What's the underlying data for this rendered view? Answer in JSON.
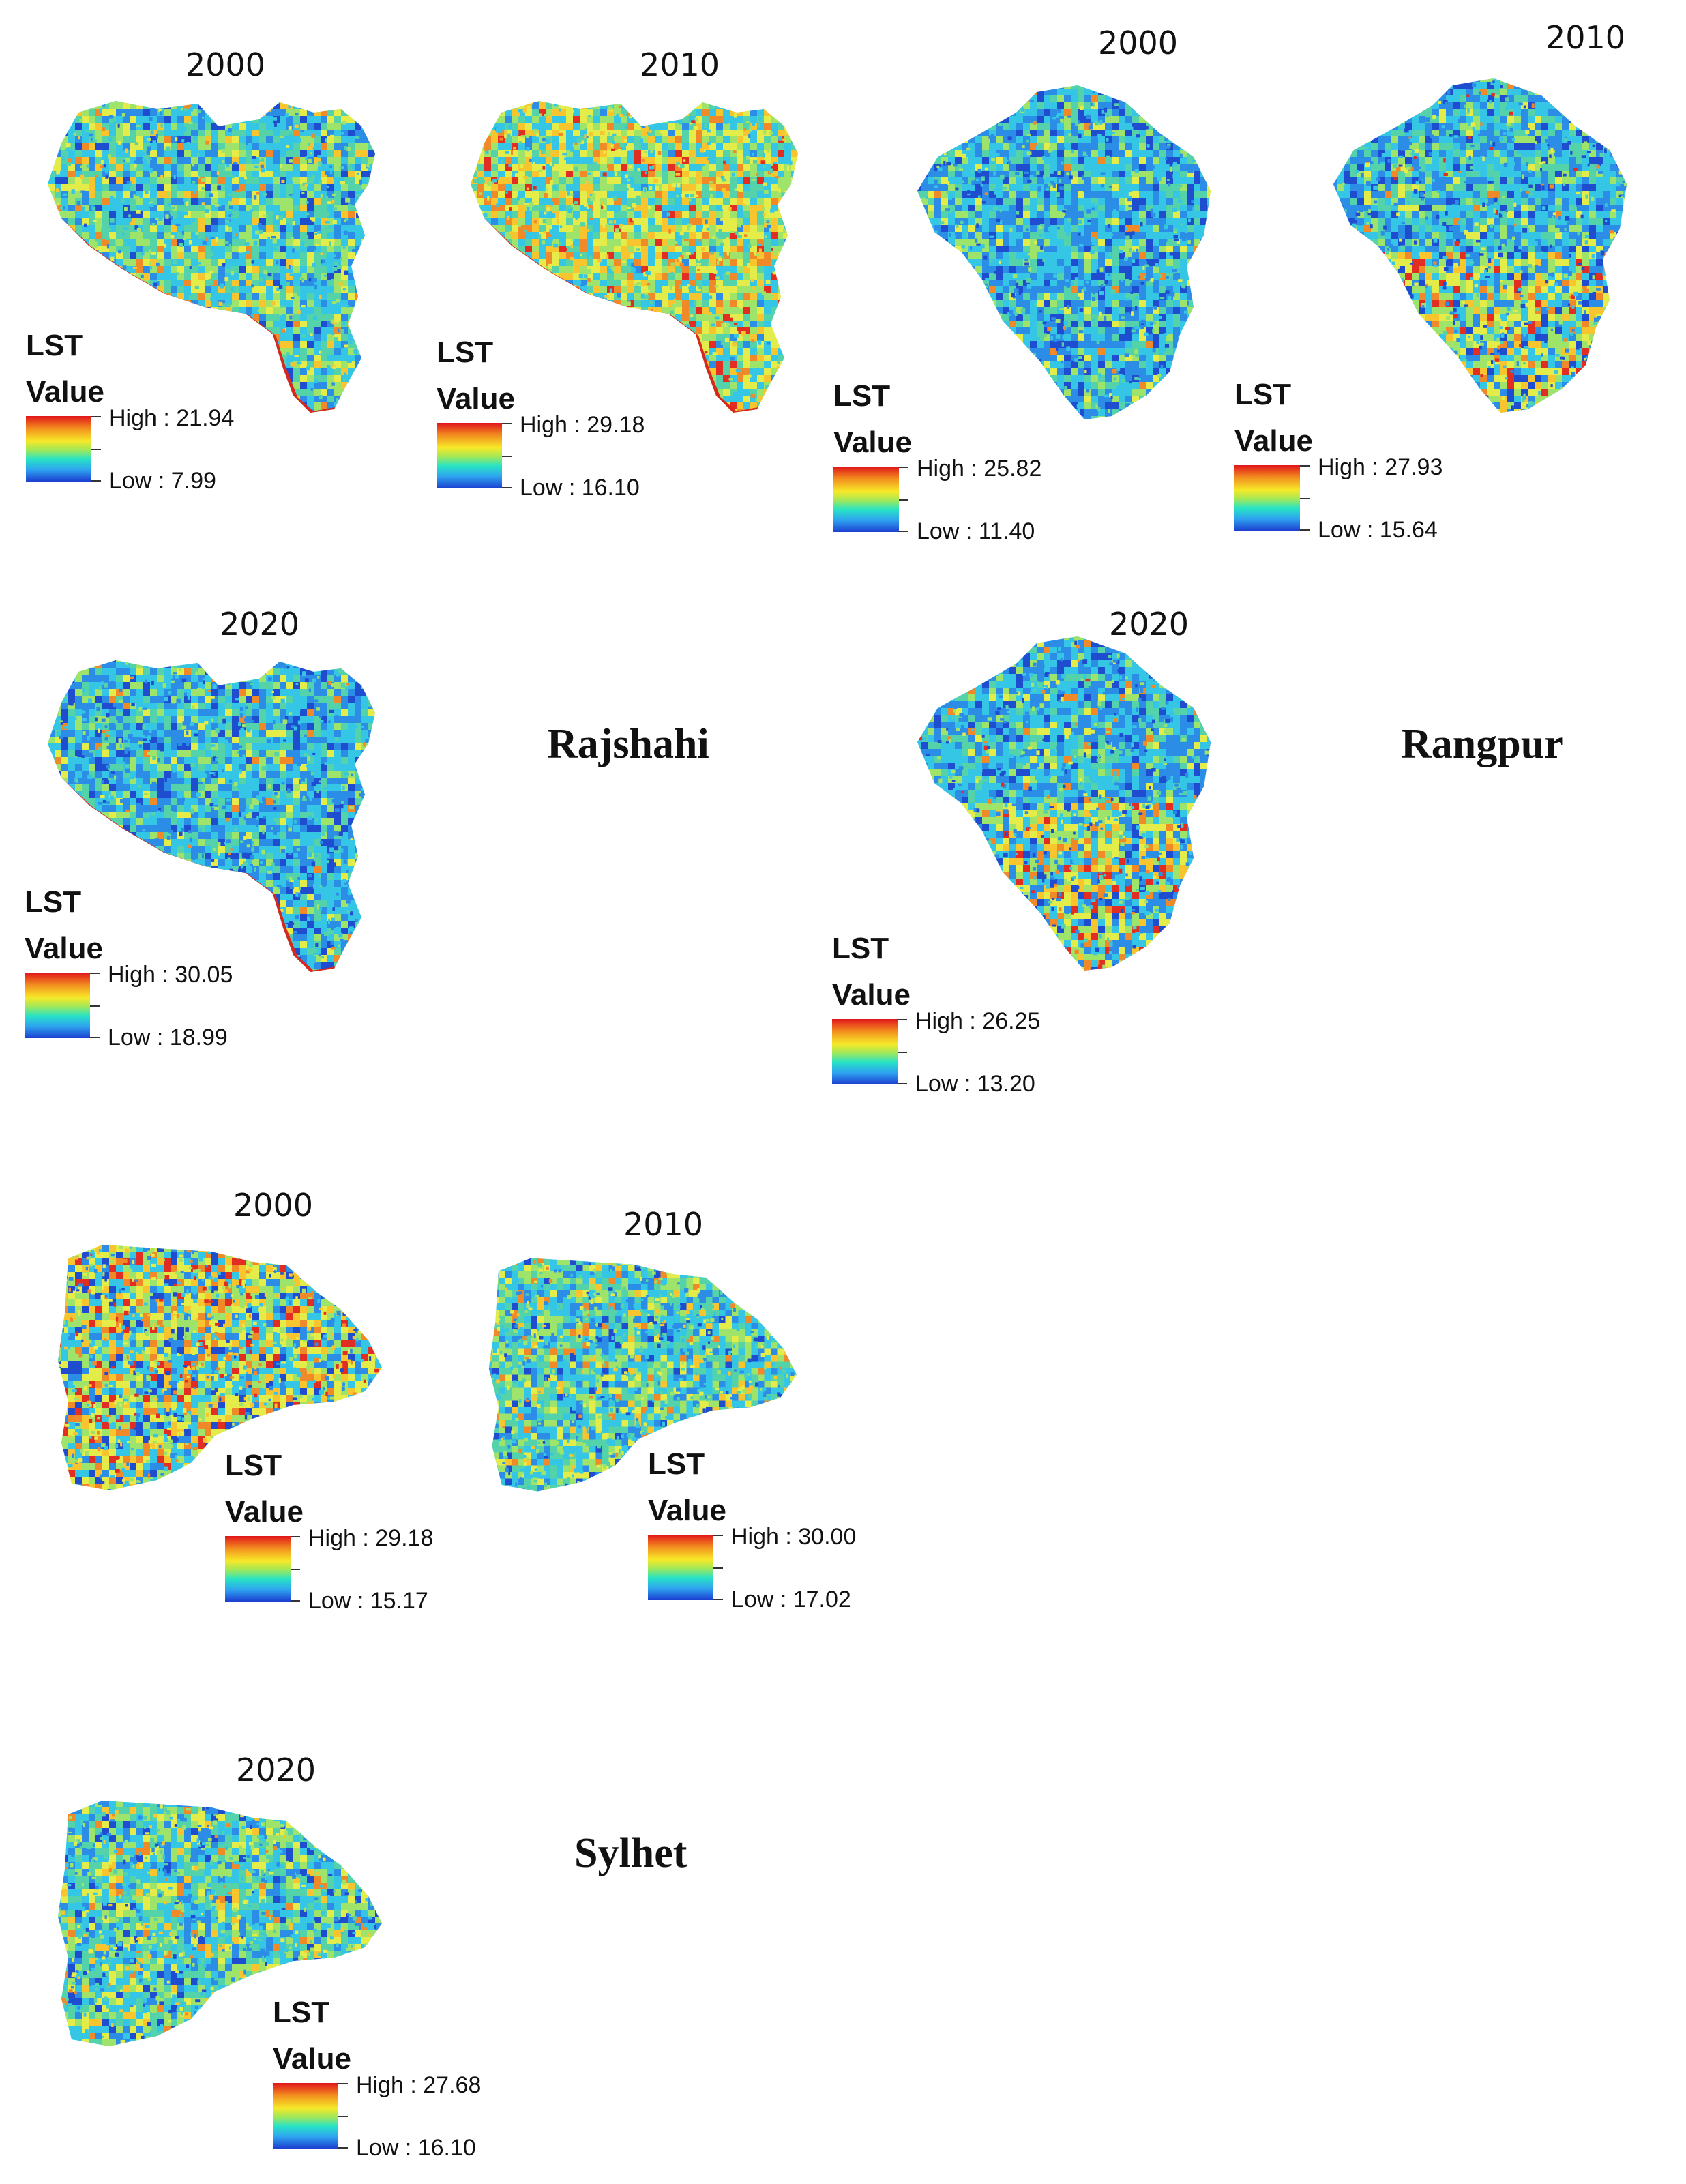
{
  "regions": [
    {
      "name": "Rajshahi",
      "panels": [
        {
          "year": "2000",
          "legend": {
            "title": "LST",
            "subtitle": "Value",
            "high": "High : 21.94",
            "low": "Low : 7.99"
          }
        },
        {
          "year": "2010",
          "legend": {
            "title": "LST",
            "subtitle": "Value",
            "high": "High : 29.18",
            "low": "Low : 16.10"
          }
        },
        {
          "year": "2020",
          "legend": {
            "title": "LST",
            "subtitle": "Value",
            "high": "High : 30.05",
            "low": "Low : 18.99"
          }
        }
      ]
    },
    {
      "name": "Rangpur",
      "panels": [
        {
          "year": "2000",
          "legend": {
            "title": "LST",
            "subtitle": "Value",
            "high": "High : 25.82",
            "low": "Low : 11.40"
          }
        },
        {
          "year": "2010",
          "legend": {
            "title": "LST",
            "subtitle": "Value",
            "high": "High : 27.93",
            "low": "Low : 15.64"
          }
        },
        {
          "year": "2020",
          "legend": {
            "title": "LST",
            "subtitle": "Value",
            "high": "High : 26.25",
            "low": "Low : 13.20"
          }
        }
      ]
    },
    {
      "name": "Sylhet",
      "panels": [
        {
          "year": "2000",
          "legend": {
            "title": "LST",
            "subtitle": "Value",
            "high": "High : 29.18",
            "low": "Low : 15.17"
          }
        },
        {
          "year": "2010",
          "legend": {
            "title": "LST",
            "subtitle": "Value",
            "high": "High : 30.00",
            "low": "Low : 17.02"
          }
        },
        {
          "year": "2020",
          "legend": {
            "title": "LST",
            "subtitle": "Value",
            "high": "High : 27.68",
            "low": "Low : 16.10"
          }
        }
      ]
    }
  ],
  "colors": {
    "high": "#e0141b",
    "mid": "#f7e928",
    "low": "#1d3fd1"
  }
}
